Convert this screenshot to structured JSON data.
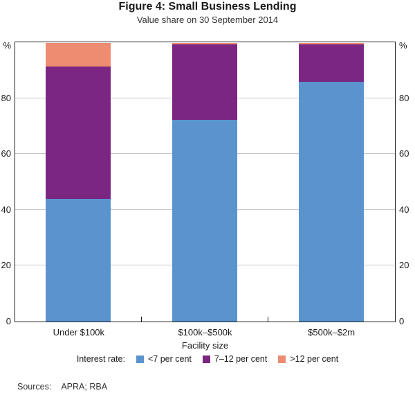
{
  "title": "Figure 4: Small Business Lending",
  "subtitle": "Value share on 30 September 2014",
  "chart_data": {
    "type": "bar",
    "stacked": true,
    "categories": [
      "Under $100k",
      "$100k–$500k",
      "$500k–$2m"
    ],
    "series": [
      {
        "name": "<7 per cent",
        "color": "#5B93CE",
        "values": [
          44,
          72.5,
          86
        ]
      },
      {
        "name": "7–12 per cent",
        "color": "#7A2682",
        "values": [
          47.5,
          27,
          13.5
        ]
      },
      {
        "name": ">12 per cent",
        "color": "#EE8C71",
        "values": [
          8.5,
          0.5,
          0.5
        ]
      }
    ],
    "xlabel": "Facility size",
    "unit_label": "%",
    "ylim": [
      0,
      100
    ],
    "yticks": [
      0,
      20,
      40,
      60,
      80
    ],
    "grid": true,
    "legend_prefix": "Interest rate:",
    "legend_position": "bottom"
  },
  "footer": {
    "sources_label": "Sources:",
    "sources_value": "APRA; RBA"
  },
  "colors": {
    "grid": "#C6C6C6",
    "axis": "#1a1a1a"
  }
}
